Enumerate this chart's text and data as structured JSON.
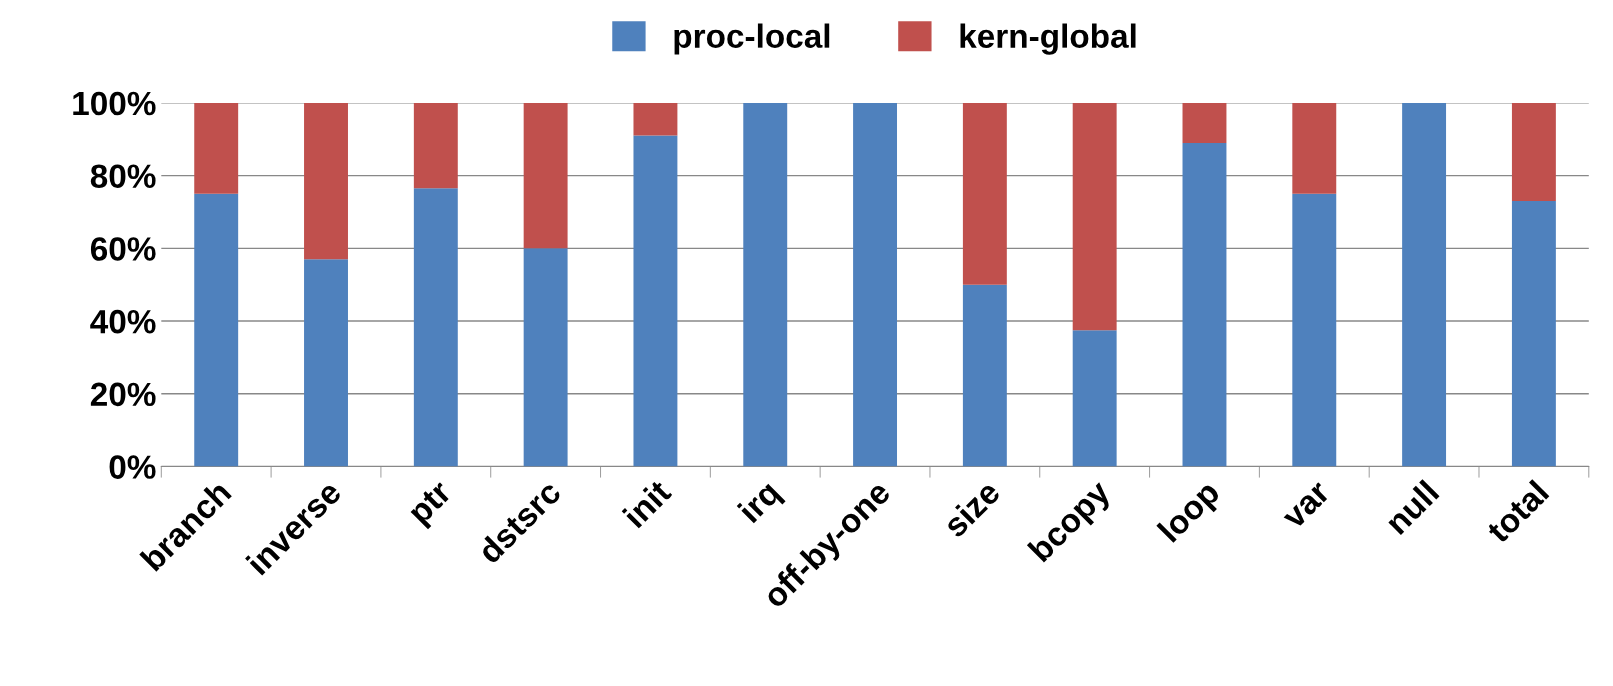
{
  "chart_data": {
    "type": "bar",
    "stacked": true,
    "categories": [
      "branch",
      "inverse",
      "ptr",
      "dstsrc",
      "init",
      "irq",
      "off-by-one",
      "size",
      "bcopy",
      "loop",
      "var",
      "null",
      "total"
    ],
    "series": [
      {
        "name": "proc-local",
        "color": "#4f81bd",
        "values": [
          75,
          57,
          76.5,
          60,
          91,
          100,
          100,
          50,
          37.5,
          89,
          75,
          100,
          73
        ]
      },
      {
        "name": "kern-global",
        "color": "#c0504d",
        "values": [
          25,
          43,
          23.5,
          40,
          9,
          0,
          0,
          50,
          62.5,
          11,
          25,
          0,
          27
        ]
      }
    ],
    "ylim": [
      0,
      100
    ],
    "yticks": [
      {
        "value": 0,
        "label": "0%"
      },
      {
        "value": 20,
        "label": "20%"
      },
      {
        "value": 40,
        "label": "40%"
      },
      {
        "value": 60,
        "label": "60%"
      },
      {
        "value": 80,
        "label": "80%"
      },
      {
        "value": 100,
        "label": "100%"
      }
    ],
    "grid": "y",
    "legend": "top"
  }
}
